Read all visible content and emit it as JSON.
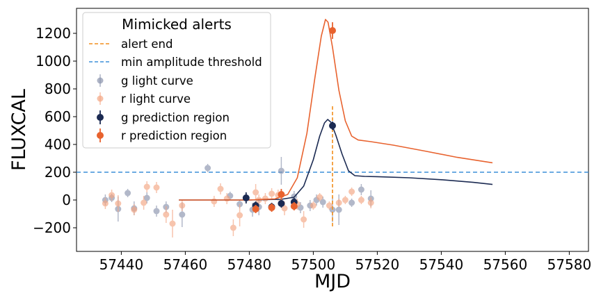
{
  "chart_data": {
    "type": "scatter",
    "xlabel": "MJD",
    "ylabel": "FLUXCAL",
    "xlim": [
      57426,
      57586
    ],
    "ylim": [
      -370,
      1380
    ],
    "xticks": [
      57440,
      57460,
      57480,
      57500,
      57520,
      57540,
      57560,
      57580
    ],
    "yticks": [
      -200,
      0,
      200,
      400,
      600,
      800,
      1000,
      1200
    ],
    "grid": false,
    "legend": {
      "title": "Mimicked alerts",
      "placement": "top-left",
      "entries": [
        "alert end",
        "min amplitude threshold",
        "g light curve",
        "r light curve",
        "g  prediction region",
        "r  prediction region"
      ]
    },
    "colors": {
      "g": "#1b2a52",
      "r": "#e8622e",
      "r_light": "#f4a582",
      "g_light": "#8a93ad",
      "alert_end": "#f28e1c",
      "threshold": "#3b8fd9"
    },
    "threshold": 200,
    "alert_end": {
      "x": 57506,
      "y_from": -190,
      "y_to": 690
    },
    "series": [
      {
        "name": "g light curve",
        "points": [
          [
            57435,
            0,
            40
          ],
          [
            57437,
            15,
            30
          ],
          [
            57439,
            -65,
            90
          ],
          [
            57442,
            50,
            30
          ],
          [
            57444,
            -60,
            50
          ],
          [
            57448,
            15,
            40
          ],
          [
            57451,
            -80,
            40
          ],
          [
            57454,
            -50,
            40
          ],
          [
            57459,
            -105,
            90
          ],
          [
            57467,
            230,
            30
          ],
          [
            57474,
            30,
            30
          ],
          [
            57477,
            -30,
            30
          ],
          [
            57481,
            -70,
            50
          ],
          [
            57483,
            -50,
            60
          ],
          [
            57490,
            210,
            100
          ],
          [
            57494,
            25,
            40
          ],
          [
            57496,
            -55,
            40
          ],
          [
            57499,
            -40,
            40
          ],
          [
            57501,
            0,
            40
          ],
          [
            57503,
            -15,
            40
          ],
          [
            57506,
            -70,
            90
          ],
          [
            57508,
            -70,
            110
          ],
          [
            57512,
            -20,
            30
          ],
          [
            57515,
            75,
            40
          ],
          [
            57518,
            10,
            60
          ]
        ]
      },
      {
        "name": "r light curve",
        "points": [
          [
            57435,
            -25,
            40
          ],
          [
            57437,
            35,
            40
          ],
          [
            57439,
            -25,
            60
          ],
          [
            57444,
            -70,
            40
          ],
          [
            57447,
            -20,
            50
          ],
          [
            57448,
            95,
            40
          ],
          [
            57451,
            90,
            40
          ],
          [
            57454,
            -105,
            60
          ],
          [
            57456,
            -170,
            100
          ],
          [
            57459,
            -40,
            40
          ],
          [
            57469,
            -10,
            40
          ],
          [
            57471,
            80,
            40
          ],
          [
            57473,
            10,
            40
          ],
          [
            57475,
            -200,
            60
          ],
          [
            57477,
            -110,
            80
          ],
          [
            57482,
            55,
            60
          ],
          [
            57483,
            0,
            40
          ],
          [
            57485,
            10,
            40
          ],
          [
            57487,
            45,
            40
          ],
          [
            57489,
            35,
            40
          ],
          [
            57491,
            -60,
            50
          ],
          [
            57495,
            -30,
            40
          ],
          [
            57497,
            -140,
            60
          ],
          [
            57500,
            -40,
            30
          ],
          [
            57502,
            20,
            30
          ],
          [
            57505,
            -40,
            30
          ],
          [
            57508,
            -20,
            30
          ],
          [
            57510,
            0,
            30
          ],
          [
            57512,
            60,
            30
          ],
          [
            57515,
            0,
            30
          ],
          [
            57518,
            -20,
            40
          ]
        ]
      },
      {
        "name": "g  prediction region",
        "points": [
          [
            57479,
            15,
            40
          ],
          [
            57482,
            -40,
            30
          ],
          [
            57487,
            -50,
            30
          ],
          [
            57490,
            -25,
            30
          ],
          [
            57494,
            -15,
            30
          ],
          [
            57506,
            535,
            30
          ]
        ]
      },
      {
        "name": "r  prediction region",
        "points": [
          [
            57482,
            -65,
            30
          ],
          [
            57487,
            -55,
            30
          ],
          [
            57490,
            40,
            40
          ],
          [
            57494,
            -45,
            30
          ],
          [
            57506,
            1220,
            60
          ]
        ]
      }
    ],
    "model_curves": [
      {
        "name": "g model",
        "points": [
          [
            57458,
            0
          ],
          [
            57480,
            0
          ],
          [
            57490,
            5
          ],
          [
            57494,
            20
          ],
          [
            57497,
            100
          ],
          [
            57500,
            290
          ],
          [
            57502,
            460
          ],
          [
            57503.5,
            555
          ],
          [
            57504.5,
            580
          ],
          [
            57505.5,
            560
          ],
          [
            57507,
            470
          ],
          [
            57509,
            330
          ],
          [
            57511,
            210
          ],
          [
            57513,
            175
          ],
          [
            57516,
            170
          ],
          [
            57520,
            168
          ],
          [
            57530,
            160
          ],
          [
            57540,
            146
          ],
          [
            57550,
            127
          ],
          [
            57556,
            112
          ]
        ]
      },
      {
        "name": "r model",
        "points": [
          [
            57458,
            0
          ],
          [
            57480,
            0
          ],
          [
            57488,
            8
          ],
          [
            57492,
            40
          ],
          [
            57495,
            160
          ],
          [
            57498,
            480
          ],
          [
            57500.5,
            880
          ],
          [
            57502.5,
            1180
          ],
          [
            57503.8,
            1300
          ],
          [
            57504.6,
            1280
          ],
          [
            57506,
            1100
          ],
          [
            57508,
            790
          ],
          [
            57510,
            570
          ],
          [
            57512,
            460
          ],
          [
            57514,
            432
          ],
          [
            57518,
            420
          ],
          [
            57525,
            395
          ],
          [
            57535,
            352
          ],
          [
            57545,
            307
          ],
          [
            57556,
            268
          ]
        ]
      }
    ]
  }
}
